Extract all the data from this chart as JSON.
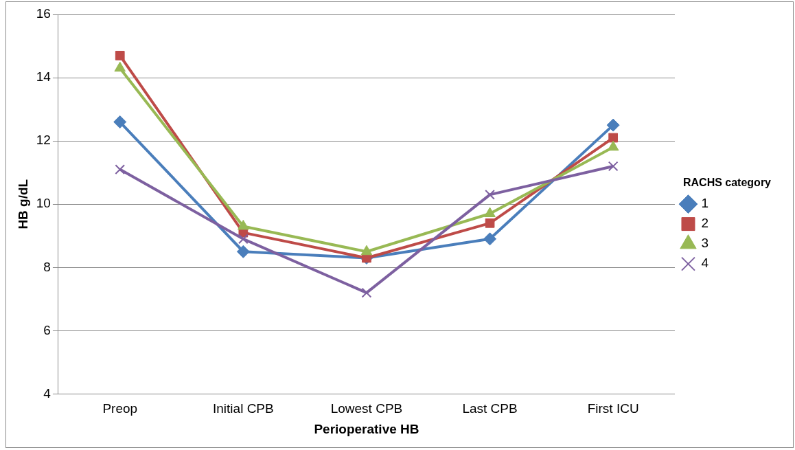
{
  "chart_data": {
    "type": "line",
    "xlabel": "Perioperative HB",
    "ylabel": "HB g/dL",
    "legend_title": "RACHS category",
    "categories": [
      "Preop",
      "Initial CPB",
      "Lowest CPB",
      "Last CPB",
      "First ICU"
    ],
    "series": [
      {
        "name": "1",
        "color": "#4a7ebb",
        "marker": "diamond",
        "values": [
          12.6,
          8.5,
          8.3,
          8.9,
          12.5
        ]
      },
      {
        "name": "2",
        "color": "#be4b48",
        "marker": "square",
        "values": [
          14.7,
          9.1,
          8.3,
          9.4,
          12.1
        ]
      },
      {
        "name": "3",
        "color": "#98b954",
        "marker": "triangle",
        "values": [
          14.3,
          9.3,
          8.5,
          9.7,
          11.8
        ]
      },
      {
        "name": "4",
        "color": "#7d60a0",
        "marker": "cross",
        "values": [
          11.1,
          8.9,
          7.2,
          10.3,
          11.2
        ]
      }
    ],
    "ylim": [
      4,
      16
    ],
    "yticks": [
      4,
      6,
      8,
      10,
      12,
      14,
      16
    ],
    "grid": "y",
    "legend": "right",
    "line_style": "solid"
  }
}
